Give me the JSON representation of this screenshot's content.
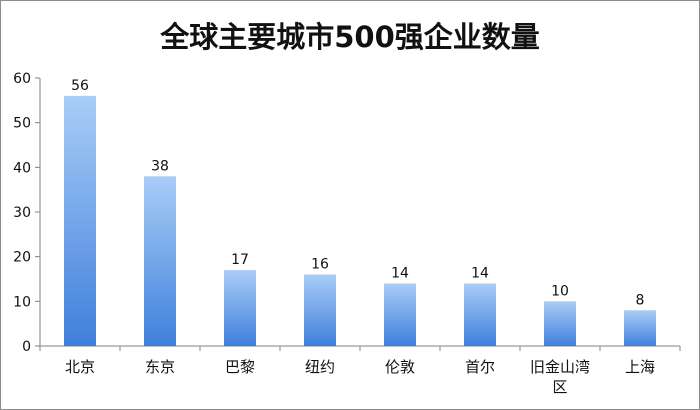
{
  "chart_data": {
    "type": "bar",
    "title": "全球主要城市500强企业数量",
    "categories": [
      "北京",
      "东京",
      "巴黎",
      "纽约",
      "伦敦",
      "首尔",
      "旧金山湾区",
      "上海"
    ],
    "category_lines": [
      [
        "北京"
      ],
      [
        "东京"
      ],
      [
        "巴黎"
      ],
      [
        "纽约"
      ],
      [
        "伦敦"
      ],
      [
        "首尔"
      ],
      [
        "旧金山湾",
        "区"
      ],
      [
        "上海"
      ]
    ],
    "values": [
      56,
      38,
      17,
      16,
      14,
      14,
      10,
      8
    ],
    "data_labels": [
      "56",
      "38",
      "17",
      "16",
      "14",
      "14",
      "10",
      "8"
    ],
    "yticks": [
      "0",
      "10",
      "20",
      "30",
      "40",
      "50",
      "60"
    ],
    "ylim": [
      0,
      60
    ],
    "grid": false,
    "legend": "none",
    "colors": {
      "bar_top": "#a9cdf7",
      "bar_bottom": "#3f7fdc",
      "axis": "#808080"
    }
  }
}
